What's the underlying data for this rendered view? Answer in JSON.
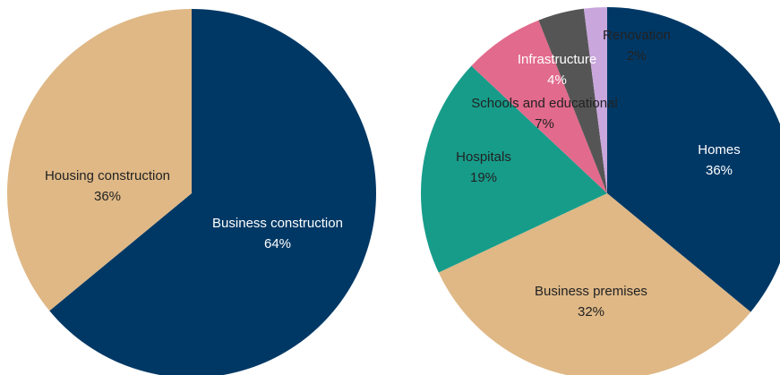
{
  "chart_data": [
    {
      "type": "pie",
      "slices": [
        {
          "label": "Business construction",
          "value": 64,
          "value_label": "64%",
          "color": "#003865",
          "text_color": "#ffffff"
        },
        {
          "label": "Housing construction",
          "value": 36,
          "value_label": "36%",
          "color": "#dfb886",
          "text_color": "#222222"
        }
      ]
    },
    {
      "type": "pie",
      "slices": [
        {
          "label": "Homes",
          "value": 36,
          "value_label": "36%",
          "color": "#003865",
          "text_color": "#ffffff"
        },
        {
          "label": "Business premises",
          "value": 32,
          "value_label": "32%",
          "color": "#dfb886",
          "text_color": "#222222"
        },
        {
          "label": "Hospitals",
          "value": 19,
          "value_label": "19%",
          "color": "#179c8a",
          "text_color": "#222222"
        },
        {
          "label": "Schools and educational",
          "value": 7,
          "value_label": "7%",
          "color": "#e26a8c",
          "text_color": "#222222"
        },
        {
          "label": "Infrastructure",
          "value": 4,
          "value_label": "4%",
          "color": "#555555",
          "text_color": "#ffffff"
        },
        {
          "label": "Renovation",
          "value": 2,
          "value_label": "2%",
          "color": "#c9a6dc",
          "text_color": "#222222"
        }
      ]
    }
  ]
}
